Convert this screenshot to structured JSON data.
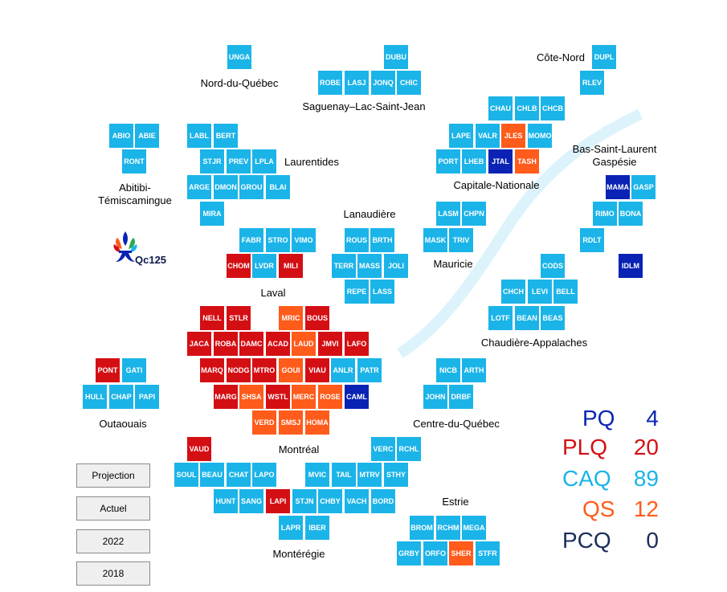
{
  "colors": {
    "CAQ": "#1BB4E8",
    "PLQ": "#D40F14",
    "QS": "#FF5B1A",
    "PQ": "#0A23B4",
    "PCQ": "#1A2D5A"
  },
  "logo_text": "Qc125",
  "regions": [
    {
      "id": "nord-du-quebec",
      "name": "Nord-du-Québec"
    },
    {
      "id": "saguenay",
      "name": "Saguenay–Lac-Saint-Jean"
    },
    {
      "id": "cote-nord",
      "name": "Côte-Nord"
    },
    {
      "id": "abitibi",
      "name": "Abitibi-\nTémiscamingue"
    },
    {
      "id": "laurentides",
      "name": "Laurentides"
    },
    {
      "id": "capitale-nationale",
      "name": "Capitale-Nationale"
    },
    {
      "id": "bas-saint-laurent",
      "name": "Bas-Saint-Laurent\nGaspésie"
    },
    {
      "id": "lanaudiere",
      "name": "Lanaudière"
    },
    {
      "id": "mauricie",
      "name": "Mauricie"
    },
    {
      "id": "laval",
      "name": "Laval"
    },
    {
      "id": "chaudiere-appalaches",
      "name": "Chaudière-Appalaches"
    },
    {
      "id": "outaouais",
      "name": "Outaouais"
    },
    {
      "id": "centre-du-quebec",
      "name": "Centre-du-Québec"
    },
    {
      "id": "montreal",
      "name": "Montréal"
    },
    {
      "id": "estrie",
      "name": "Estrie"
    },
    {
      "id": "monteregie",
      "name": "Montérégie"
    }
  ],
  "ridings": [
    {
      "code": "UNGA",
      "party": "CAQ"
    },
    {
      "code": "DUBU",
      "party": "CAQ"
    },
    {
      "code": "DUPL",
      "party": "CAQ"
    },
    {
      "code": "ROBE",
      "party": "CAQ"
    },
    {
      "code": "LASJ",
      "party": "CAQ"
    },
    {
      "code": "JONQ",
      "party": "CAQ"
    },
    {
      "code": "CHIC",
      "party": "CAQ"
    },
    {
      "code": "RLEV",
      "party": "CAQ"
    },
    {
      "code": "CHAU",
      "party": "CAQ"
    },
    {
      "code": "CHLB",
      "party": "CAQ"
    },
    {
      "code": "CHCB",
      "party": "CAQ"
    },
    {
      "code": "ABIO",
      "party": "CAQ"
    },
    {
      "code": "ABIE",
      "party": "CAQ"
    },
    {
      "code": "LABL",
      "party": "CAQ"
    },
    {
      "code": "BERT",
      "party": "CAQ"
    },
    {
      "code": "LAPE",
      "party": "CAQ"
    },
    {
      "code": "VALR",
      "party": "CAQ"
    },
    {
      "code": "JLES",
      "party": "QS"
    },
    {
      "code": "MOMO",
      "party": "CAQ"
    },
    {
      "code": "RONT",
      "party": "CAQ"
    },
    {
      "code": "STJR",
      "party": "CAQ"
    },
    {
      "code": "PREV",
      "party": "CAQ"
    },
    {
      "code": "LPLA",
      "party": "CAQ"
    },
    {
      "code": "PORT",
      "party": "CAQ"
    },
    {
      "code": "LHEB",
      "party": "CAQ"
    },
    {
      "code": "JTAL",
      "party": "PQ"
    },
    {
      "code": "TASH",
      "party": "QS"
    },
    {
      "code": "ARGE",
      "party": "CAQ"
    },
    {
      "code": "DMON",
      "party": "CAQ"
    },
    {
      "code": "GROU",
      "party": "CAQ"
    },
    {
      "code": "BLAI",
      "party": "CAQ"
    },
    {
      "code": "MAMA",
      "party": "PQ"
    },
    {
      "code": "GASP",
      "party": "CAQ"
    },
    {
      "code": "MIRA",
      "party": "CAQ"
    },
    {
      "code": "LASM",
      "party": "CAQ"
    },
    {
      "code": "CHPN",
      "party": "CAQ"
    },
    {
      "code": "RIMO",
      "party": "CAQ"
    },
    {
      "code": "BONA",
      "party": "CAQ"
    },
    {
      "code": "FABR",
      "party": "CAQ"
    },
    {
      "code": "STRO",
      "party": "CAQ"
    },
    {
      "code": "VIMO",
      "party": "CAQ"
    },
    {
      "code": "ROUS",
      "party": "CAQ"
    },
    {
      "code": "BRTH",
      "party": "CAQ"
    },
    {
      "code": "MASK",
      "party": "CAQ"
    },
    {
      "code": "TRIV",
      "party": "CAQ"
    },
    {
      "code": "RDLT",
      "party": "CAQ"
    },
    {
      "code": "CHOM",
      "party": "PLQ"
    },
    {
      "code": "LVDR",
      "party": "CAQ"
    },
    {
      "code": "MILI",
      "party": "PLQ"
    },
    {
      "code": "TERR",
      "party": "CAQ"
    },
    {
      "code": "MASS",
      "party": "CAQ"
    },
    {
      "code": "JOLI",
      "party": "CAQ"
    },
    {
      "code": "CODS",
      "party": "CAQ"
    },
    {
      "code": "IDLM",
      "party": "PQ"
    },
    {
      "code": "REPE",
      "party": "CAQ"
    },
    {
      "code": "LASS",
      "party": "CAQ"
    },
    {
      "code": "CHCH",
      "party": "CAQ"
    },
    {
      "code": "LEVI",
      "party": "CAQ"
    },
    {
      "code": "BELL",
      "party": "CAQ"
    },
    {
      "code": "NELL",
      "party": "PLQ"
    },
    {
      "code": "STLR",
      "party": "PLQ"
    },
    {
      "code": "MRIC",
      "party": "QS"
    },
    {
      "code": "BOUS",
      "party": "PLQ"
    },
    {
      "code": "LOTF",
      "party": "CAQ"
    },
    {
      "code": "BEAN",
      "party": "CAQ"
    },
    {
      "code": "BEAS",
      "party": "CAQ"
    },
    {
      "code": "JACA",
      "party": "PLQ"
    },
    {
      "code": "ROBA",
      "party": "PLQ"
    },
    {
      "code": "DAMC",
      "party": "PLQ"
    },
    {
      "code": "ACAD",
      "party": "PLQ"
    },
    {
      "code": "LAUD",
      "party": "QS"
    },
    {
      "code": "JMVI",
      "party": "PLQ"
    },
    {
      "code": "LAFO",
      "party": "PLQ"
    },
    {
      "code": "PONT",
      "party": "PLQ"
    },
    {
      "code": "GATI",
      "party": "CAQ"
    },
    {
      "code": "MARQ",
      "party": "PLQ"
    },
    {
      "code": "NODG",
      "party": "PLQ"
    },
    {
      "code": "MTRO",
      "party": "PLQ"
    },
    {
      "code": "GOUI",
      "party": "QS"
    },
    {
      "code": "VIAU",
      "party": "PLQ"
    },
    {
      "code": "ANLR",
      "party": "CAQ"
    },
    {
      "code": "PATR",
      "party": "CAQ"
    },
    {
      "code": "NICB",
      "party": "CAQ"
    },
    {
      "code": "ARTH",
      "party": "CAQ"
    },
    {
      "code": "HULL",
      "party": "CAQ"
    },
    {
      "code": "CHAP",
      "party": "CAQ"
    },
    {
      "code": "PAPI",
      "party": "CAQ"
    },
    {
      "code": "MARG",
      "party": "PLQ"
    },
    {
      "code": "SHSA",
      "party": "QS"
    },
    {
      "code": "WSTL",
      "party": "PLQ"
    },
    {
      "code": "MERC",
      "party": "QS"
    },
    {
      "code": "ROSE",
      "party": "QS"
    },
    {
      "code": "CAML",
      "party": "PQ"
    },
    {
      "code": "JOHN",
      "party": "CAQ"
    },
    {
      "code": "DRBF",
      "party": "CAQ"
    },
    {
      "code": "VERD",
      "party": "QS"
    },
    {
      "code": "SMSJ",
      "party": "QS"
    },
    {
      "code": "HOMA",
      "party": "QS"
    },
    {
      "code": "VAUD",
      "party": "PLQ"
    },
    {
      "code": "VERC",
      "party": "CAQ"
    },
    {
      "code": "RCHL",
      "party": "CAQ"
    },
    {
      "code": "SOUL",
      "party": "CAQ"
    },
    {
      "code": "BEAU",
      "party": "CAQ"
    },
    {
      "code": "CHAT",
      "party": "CAQ"
    },
    {
      "code": "LAPO",
      "party": "CAQ"
    },
    {
      "code": "MVIC",
      "party": "CAQ"
    },
    {
      "code": "TAIL",
      "party": "CAQ"
    },
    {
      "code": "MTRV",
      "party": "CAQ"
    },
    {
      "code": "STHY",
      "party": "CAQ"
    },
    {
      "code": "HUNT",
      "party": "CAQ"
    },
    {
      "code": "SANG",
      "party": "CAQ"
    },
    {
      "code": "LAPI",
      "party": "PLQ"
    },
    {
      "code": "STJN",
      "party": "CAQ"
    },
    {
      "code": "CHBY",
      "party": "CAQ"
    },
    {
      "code": "VACH",
      "party": "CAQ"
    },
    {
      "code": "BORD",
      "party": "CAQ"
    },
    {
      "code": "LAPR",
      "party": "CAQ"
    },
    {
      "code": "IBER",
      "party": "CAQ"
    },
    {
      "code": "BROM",
      "party": "CAQ"
    },
    {
      "code": "RCHM",
      "party": "CAQ"
    },
    {
      "code": "MEGA",
      "party": "CAQ"
    },
    {
      "code": "GRBY",
      "party": "CAQ"
    },
    {
      "code": "ORFO",
      "party": "CAQ"
    },
    {
      "code": "SHER",
      "party": "QS"
    },
    {
      "code": "STFR",
      "party": "CAQ"
    }
  ],
  "tally": [
    {
      "party": "PQ",
      "seats": "4"
    },
    {
      "party": "PLQ",
      "seats": "20"
    },
    {
      "party": "CAQ",
      "seats": "89"
    },
    {
      "party": "QS",
      "seats": "12"
    },
    {
      "party": "PCQ",
      "seats": "0"
    }
  ],
  "buttons": [
    "Projection",
    "Actuel",
    "2022",
    "2018"
  ]
}
